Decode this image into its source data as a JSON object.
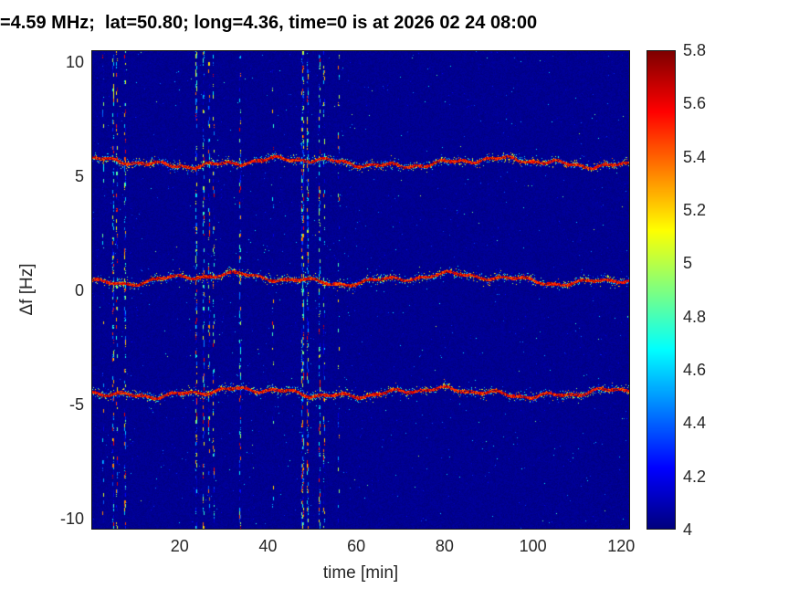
{
  "chart_data": {
    "type": "heatmap",
    "title": "=4.59 MHz;  lat=50.80; long=4.36, time=0 is at 2026 02 24 08:00",
    "xlabel": "time [min]",
    "ylabel": "Δf [Hz]",
    "xlim": [
      0,
      122
    ],
    "ylim": [
      -10.5,
      10.5
    ],
    "x_ticks": [
      20,
      40,
      60,
      80,
      100,
      120
    ],
    "y_ticks": [
      10,
      5,
      0,
      -5,
      -10
    ],
    "grid": false,
    "color_scale": {
      "colormap": "jet",
      "min": 4,
      "max": 5.8
    },
    "colorbar_ticks": [
      {
        "value": 5.8,
        "label": "5.8"
      },
      {
        "value": 5.6,
        "label": "5.6"
      },
      {
        "value": 5.4,
        "label": "5.4"
      },
      {
        "value": 5.2,
        "label": "5.2"
      },
      {
        "value": 5.0,
        "label": "5"
      },
      {
        "value": 4.8,
        "label": "4.8"
      },
      {
        "value": 4.6,
        "label": "4.6"
      },
      {
        "value": 4.4,
        "label": "4.4"
      },
      {
        "value": 4.2,
        "label": "4.2"
      },
      {
        "value": 4.0,
        "label": "4"
      }
    ],
    "background_level": 4.0,
    "traces": [
      {
        "name": "upper-doppler-trace",
        "center_hz": 5.62,
        "peak_level": 5.7,
        "wobble": [
          {
            "amp": 0.15,
            "period": 47,
            "phase": 1.8
          },
          {
            "amp": 0.08,
            "period": 13,
            "phase": 0.5
          },
          {
            "amp": 0.05,
            "period": 5.3,
            "phase": 2.2
          }
        ]
      },
      {
        "name": "center-doppler-trace",
        "center_hz": 0.5,
        "peak_level": 5.8,
        "wobble": [
          {
            "amp": 0.18,
            "period": 52,
            "phase": 4.2
          },
          {
            "amp": 0.1,
            "period": 16,
            "phase": 1.1
          },
          {
            "amp": 0.05,
            "period": 6.1,
            "phase": 0.3
          }
        ]
      },
      {
        "name": "lower-doppler-trace",
        "center_hz": -4.5,
        "peak_level": 5.7,
        "wobble": [
          {
            "amp": 0.15,
            "period": 44,
            "phase": 2.9
          },
          {
            "amp": 0.08,
            "period": 12,
            "phase": 3.7
          },
          {
            "amp": 0.05,
            "period": 5.7,
            "phase": 1.0
          }
        ]
      }
    ],
    "interference": [
      {
        "time_min": 2.3,
        "density": 0.1,
        "width_min": 0.25
      },
      {
        "time_min": 4.7,
        "density": 0.4,
        "width_min": 0.4
      },
      {
        "time_min": 5.6,
        "density": 0.25,
        "width_min": 0.25
      },
      {
        "time_min": 7.3,
        "density": 0.45,
        "width_min": 0.4
      },
      {
        "time_min": 23.6,
        "density": 0.5,
        "width_min": 0.45
      },
      {
        "time_min": 25.2,
        "density": 0.45,
        "width_min": 0.4
      },
      {
        "time_min": 26.5,
        "density": 0.35,
        "width_min": 0.3
      },
      {
        "time_min": 27.4,
        "density": 0.25,
        "width_min": 0.25
      },
      {
        "time_min": 33.5,
        "density": 0.4,
        "width_min": 0.35
      },
      {
        "time_min": 41.0,
        "density": 0.1,
        "width_min": 0.25
      },
      {
        "time_min": 47.7,
        "density": 0.6,
        "width_min": 0.5
      },
      {
        "time_min": 48.9,
        "density": 0.55,
        "width_min": 0.45
      },
      {
        "time_min": 51.5,
        "density": 0.45,
        "width_min": 0.4
      },
      {
        "time_min": 52.6,
        "density": 0.3,
        "width_min": 0.3
      },
      {
        "time_min": 55.9,
        "density": 0.12,
        "width_min": 0.25
      }
    ]
  }
}
